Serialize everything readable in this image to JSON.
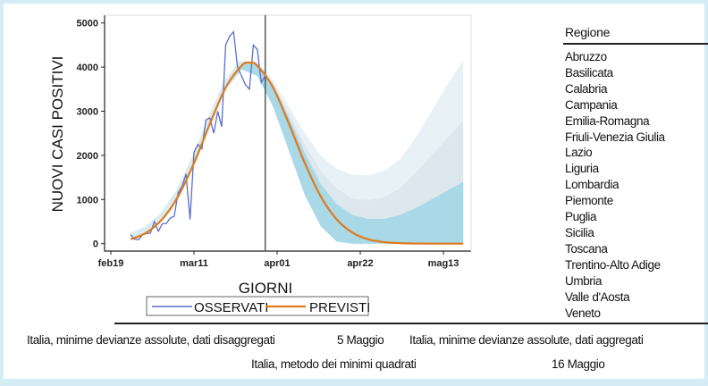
{
  "chart_data": {
    "type": "line",
    "ylabel": "NUOVI CASI POSITIVI",
    "xlabel": "GIORNI",
    "x_unit": "days since feb19",
    "xticks": [
      {
        "day": 0,
        "label": "feb19"
      },
      {
        "day": 21,
        "label": "mar11"
      },
      {
        "day": 42,
        "label": "apr01"
      },
      {
        "day": 63,
        "label": "apr22"
      },
      {
        "day": 84,
        "label": "mag13"
      }
    ],
    "yticks": [
      0,
      1000,
      2000,
      3000,
      4000,
      5000
    ],
    "ylim": [
      -200,
      5150
    ],
    "xlim": [
      -2,
      90
    ],
    "vertical_line_day": 39,
    "legend": {
      "placement": "bottom",
      "entries": [
        {
          "label": "OSSERVATI",
          "color": "#5a6fc8"
        },
        {
          "label": "PREVISTI",
          "color": "#e07a1e"
        }
      ]
    },
    "observed": {
      "name": "OSSERVATI",
      "color": "#5a6fc8",
      "x": [
        5,
        6,
        7,
        8,
        9,
        10,
        11,
        12,
        13,
        14,
        15,
        16,
        17,
        18,
        19,
        20,
        21,
        22,
        23,
        24,
        25,
        26,
        27,
        28,
        29,
        30,
        31,
        32,
        33,
        34,
        35,
        36,
        37,
        38,
        39
      ],
      "y": [
        200,
        100,
        90,
        200,
        230,
        240,
        500,
        280,
        450,
        460,
        580,
        620,
        1150,
        1300,
        1580,
        550,
        2070,
        2250,
        2150,
        2800,
        2850,
        2500,
        3000,
        2650,
        4500,
        4700,
        4800,
        4000,
        3800,
        3600,
        3500,
        4500,
        4400,
        3650,
        3800
      ]
    },
    "predicted": {
      "name": "PREVISTI",
      "color": "#e07a1e",
      "x": [
        5,
        9,
        13,
        17,
        21,
        25,
        29,
        33,
        35,
        37,
        41,
        45,
        49,
        53,
        57,
        61,
        65,
        69,
        73,
        77,
        81,
        85,
        89
      ],
      "y": [
        99,
        251,
        555,
        1073,
        1824,
        2713,
        3534,
        4032,
        4100,
        4032,
        3534,
        2713,
        1824,
        1073,
        555,
        251,
        99,
        35,
        11,
        3,
        0,
        0,
        0
      ]
    },
    "bands": {
      "x": [
        29,
        33,
        37,
        41,
        45,
        49,
        53,
        57,
        61,
        65,
        69,
        73,
        77,
        81,
        85,
        89
      ],
      "lower": [
        3500,
        3950,
        3800,
        3100,
        2100,
        1100,
        400,
        50,
        0,
        0,
        0,
        0,
        0,
        0,
        0,
        0
      ],
      "outer_upper": [
        3600,
        4150,
        4100,
        3700,
        3100,
        2500,
        2000,
        1700,
        1560,
        1550,
        1650,
        1900,
        2400,
        3000,
        3600,
        4150
      ],
      "middle_upper": [
        3550,
        4100,
        4080,
        3650,
        2950,
        2250,
        1650,
        1250,
        1020,
        980,
        1050,
        1250,
        1600,
        2000,
        2400,
        2800
      ],
      "inner_upper": [
        3540,
        4080,
        4060,
        3600,
        2850,
        2050,
        1350,
        900,
        650,
        560,
        560,
        650,
        800,
        1000,
        1200,
        1400
      ],
      "colors": [
        "#e8f1f5",
        "#dde7ee",
        "#a9d8e6"
      ]
    }
  },
  "regions": {
    "title": "Regione",
    "items": [
      "Abruzzo",
      "Basilicata",
      "Calabria",
      "Campania",
      "Emilia-Romagna",
      "Friuli-Venezia Giulia",
      "Lazio",
      "Liguria",
      "Lombardia",
      "Piemonte",
      "Puglia",
      "Sicilia",
      "Toscana",
      "Trentino-Alto Adige",
      "Umbria",
      "Valle d'Aosta",
      "Veneto"
    ]
  },
  "footer": {
    "disaggregated": "Italia, minime devianze assolute, dati disaggregati",
    "disaggregated_date": "5 Maggio",
    "aggregated": "Italia, minime devianze assolute, dati aggregati",
    "least_squares": "Italia, metodo dei minimi quadrati",
    "least_squares_date": "16 Maggio"
  }
}
